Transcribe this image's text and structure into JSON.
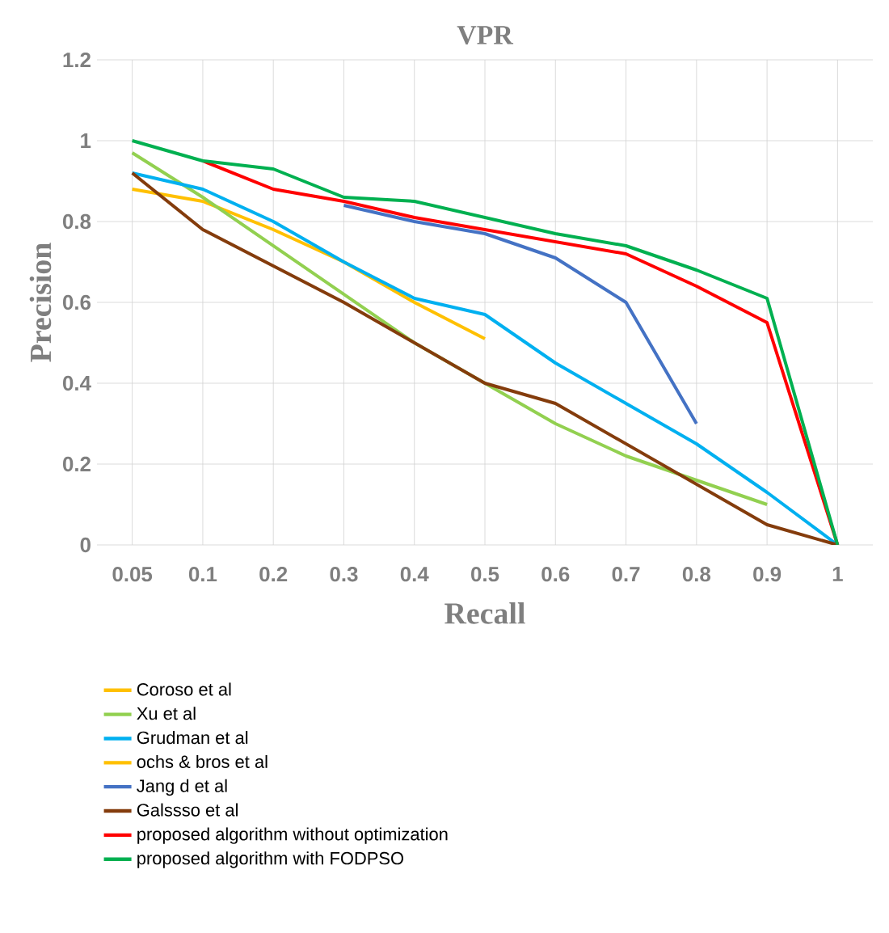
{
  "chart_data": {
    "type": "line",
    "title": "VPR",
    "xlabel": "Recall",
    "ylabel": "Precision",
    "categories": [
      "0.05",
      "0.1",
      "0.2",
      "0.3",
      "0.4",
      "0.5",
      "0.6",
      "0.7",
      "0.8",
      "0.9",
      "1"
    ],
    "ylim": [
      0,
      1.2
    ],
    "yticks": [
      0,
      0.2,
      0.4,
      0.6,
      0.8,
      1,
      1.2
    ],
    "grid": true,
    "legend": "bottom",
    "marker": "none",
    "line_style": "solid",
    "series": [
      {
        "name": "Coroso et al",
        "color": "#ffc000",
        "values": [
          0.88,
          0.85,
          0.78,
          0.7,
          0.6,
          0.51,
          null,
          null,
          null,
          null,
          null
        ]
      },
      {
        "name": "Xu et al",
        "color": "#92d050",
        "values": [
          0.97,
          0.86,
          0.74,
          0.62,
          0.5,
          0.4,
          0.3,
          0.22,
          0.16,
          0.1,
          null
        ]
      },
      {
        "name": "Grudman et al",
        "color": "#00b0f0",
        "values": [
          0.92,
          0.88,
          0.8,
          0.7,
          0.61,
          0.57,
          0.45,
          0.35,
          0.25,
          0.13,
          0
        ]
      },
      {
        "name": "ochs & bros et al",
        "color": "#ffc000",
        "values": [
          null,
          null,
          null,
          null,
          null,
          null,
          null,
          null,
          null,
          null,
          null
        ]
      },
      {
        "name": "Jang d et al",
        "color": "#4472c4",
        "values": [
          null,
          null,
          null,
          0.84,
          0.8,
          0.77,
          0.71,
          0.6,
          0.3,
          null,
          null
        ]
      },
      {
        "name": "Galssso et al",
        "color": "#843c0c",
        "values": [
          0.92,
          0.78,
          0.69,
          0.6,
          0.5,
          0.4,
          0.35,
          0.25,
          0.15,
          0.05,
          0
        ]
      },
      {
        "name": "proposed algorithm without optimization",
        "color": "#ff0000",
        "values": [
          null,
          0.95,
          0.88,
          0.85,
          0.81,
          0.78,
          0.75,
          0.72,
          0.64,
          0.55,
          0
        ]
      },
      {
        "name": "proposed algorithm with FODPSO",
        "color": "#00b050",
        "values": [
          1,
          0.95,
          0.93,
          0.86,
          0.85,
          0.81,
          0.77,
          0.74,
          0.68,
          0.61,
          0
        ]
      }
    ]
  }
}
